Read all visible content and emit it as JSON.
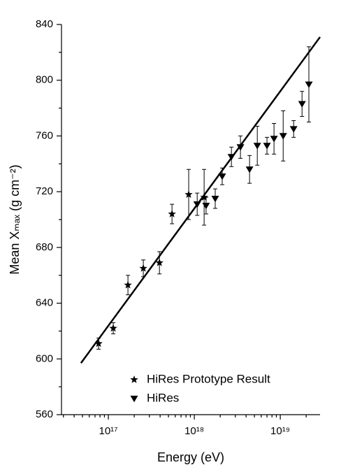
{
  "chart_data": {
    "type": "scatter",
    "x_label": "Energy (eV)",
    "y_label": "Mean Xₘₐₓ (g cm⁻²)",
    "xscale": "log",
    "xlim": [
      2.85e+16,
      2.9e+19
    ],
    "xticks": [
      {
        "value": 1e+17,
        "label": "10¹⁷"
      },
      {
        "value": 1e+18,
        "label": "10¹⁸"
      },
      {
        "value": 1e+19,
        "label": "10¹⁹"
      }
    ],
    "ylim": [
      560,
      840
    ],
    "yticks": [
      560,
      600,
      640,
      680,
      720,
      760,
      800,
      840
    ],
    "legend": "lower right",
    "series": [
      {
        "mark": "line",
        "color": "#000000",
        "x": [
          4.8e+16,
          2.9e+19
        ],
        "values": [
          597,
          831
        ]
      },
      {
        "name": "HiRes Prototype Result",
        "mark": "star",
        "color": "#000000",
        "x": [
          7.7e+16,
          1.14e+17,
          1.69e+17,
          2.55e+17,
          3.93e+17,
          5.5e+17,
          8.6e+17,
          1.3e+18
        ],
        "values": [
          611,
          622,
          653,
          665,
          669,
          704,
          718,
          716
        ],
        "errors": [
          4,
          4,
          7,
          6,
          8,
          7,
          18,
          20
        ]
      },
      {
        "name": "HiRes",
        "mark": "triangle-down",
        "color": "#000000",
        "x": [
          1.08e+18,
          1.37e+18,
          1.75e+18,
          2.11e+18,
          2.7e+18,
          3.44e+18,
          4.39e+18,
          5.4e+18,
          7e+18,
          8.45e+18,
          1.08e+19,
          1.43e+19,
          1.79e+19,
          2.15e+19
        ],
        "values": [
          711,
          710,
          715,
          731,
          745,
          752,
          736,
          753,
          753,
          758,
          760,
          765,
          783,
          797
        ],
        "errors": [
          8,
          6,
          7,
          6,
          7,
          8,
          10,
          14,
          6,
          11,
          18,
          6,
          9,
          27
        ]
      }
    ]
  }
}
